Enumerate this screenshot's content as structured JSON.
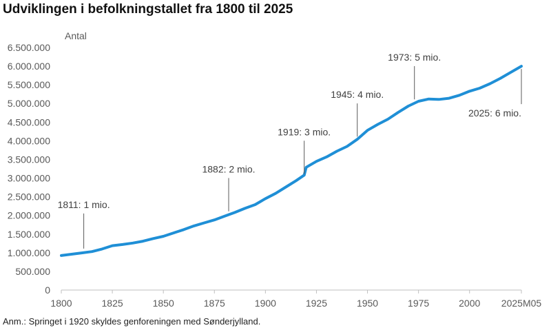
{
  "title": "Udviklingen i befolkningstallet fra 1800 til 2025",
  "note": "Anm.: Springet i 1920 skyldes genforeningen med Sønderjylland.",
  "chart_data": {
    "type": "line",
    "title": "Udviklingen i befolkningstallet fra 1800 til 2025",
    "ylabel": "Antal",
    "xlabel": "",
    "xlim": [
      1800,
      2025.4
    ],
    "ylim": [
      0,
      6500000
    ],
    "grid": false,
    "color": "#1f8fd6",
    "x_ticks": [
      1800,
      1825,
      1850,
      1875,
      1900,
      1925,
      1950,
      1975,
      2000,
      2025.4
    ],
    "x_tick_labels": [
      "1800",
      "1825",
      "1850",
      "1875",
      "1900",
      "1925",
      "1950",
      "1975",
      "2000",
      "2025M05"
    ],
    "y_ticks": [
      0,
      500000,
      1000000,
      1500000,
      2000000,
      2500000,
      3000000,
      3500000,
      4000000,
      4500000,
      5000000,
      5500000,
      6000000,
      6500000
    ],
    "y_tick_labels": [
      "0",
      "500.000",
      "1.000.000",
      "1.500.000",
      "2.000.000",
      "2.500.000",
      "3.000.000",
      "3.500.000",
      "4.000.000",
      "4.500.000",
      "5.000.000",
      "5.500.000",
      "6.000.000",
      "6.500.000"
    ],
    "series": [
      {
        "x": [
          1800,
          1805,
          1810,
          1815,
          1820,
          1825,
          1830,
          1835,
          1840,
          1845,
          1850,
          1855,
          1860,
          1865,
          1870,
          1875,
          1880,
          1885,
          1890,
          1895,
          1900,
          1905,
          1910,
          1915,
          1919,
          1920,
          1925,
          1930,
          1935,
          1940,
          1945,
          1950,
          1955,
          1960,
          1965,
          1970,
          1975,
          1980,
          1985,
          1990,
          1995,
          2000,
          2005,
          2010,
          2015,
          2020,
          2025.4
        ],
        "y": [
          925000,
          960000,
          995000,
          1030000,
          1100000,
          1190000,
          1220000,
          1260000,
          1310000,
          1380000,
          1440000,
          1530000,
          1620000,
          1720000,
          1800000,
          1880000,
          1980000,
          2080000,
          2190000,
          2290000,
          2450000,
          2590000,
          2760000,
          2930000,
          3080000,
          3290000,
          3450000,
          3570000,
          3720000,
          3850000,
          4040000,
          4280000,
          4440000,
          4580000,
          4760000,
          4930000,
          5060000,
          5120000,
          5110000,
          5140000,
          5220000,
          5330000,
          5410000,
          5530000,
          5670000,
          5830000,
          6000000
        ]
      }
    ],
    "annotations": [
      {
        "text": "1811: 1 mio.",
        "x": 1811,
        "y": 1000000,
        "label_y": 2200000
      },
      {
        "text": "1882: 2 mio.",
        "x": 1882,
        "y": 2000000,
        "label_y": 3150000
      },
      {
        "text": "1919: 3 mio.",
        "x": 1919,
        "y": 3000000,
        "label_y": 4150000
      },
      {
        "text": "1945: 4 mio.",
        "x": 1945,
        "y": 4000000,
        "label_y": 5150000
      },
      {
        "text": "1973: 5 mio.",
        "x": 1973,
        "y": 5000000,
        "label_y": 6150000
      },
      {
        "text": "2025: 6 mio.",
        "x": 2025.4,
        "y": 6000000,
        "label_y": 4650000
      }
    ]
  }
}
